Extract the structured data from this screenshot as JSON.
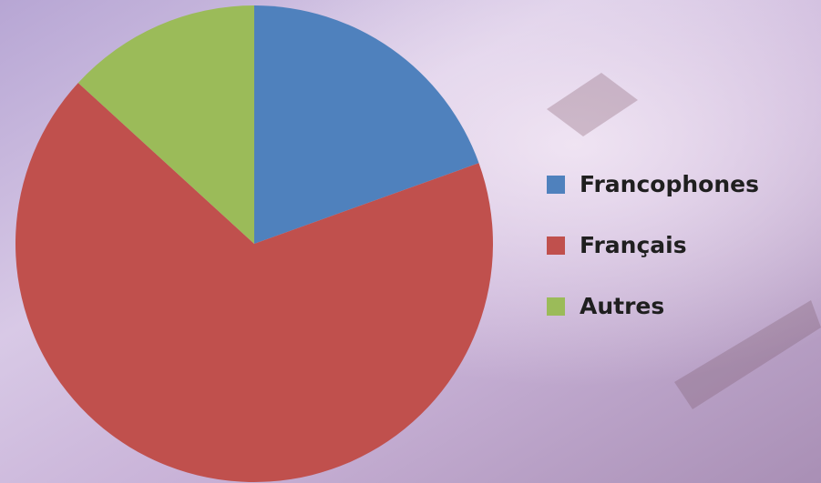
{
  "chart_data": {
    "type": "pie",
    "categories": [
      "Francophones",
      "Français",
      "Autres"
    ],
    "values": [
      19.5,
      67.3,
      13.2
    ],
    "colors": [
      "#4f81bd",
      "#c0504d",
      "#9bbb59"
    ],
    "legend": "right"
  }
}
